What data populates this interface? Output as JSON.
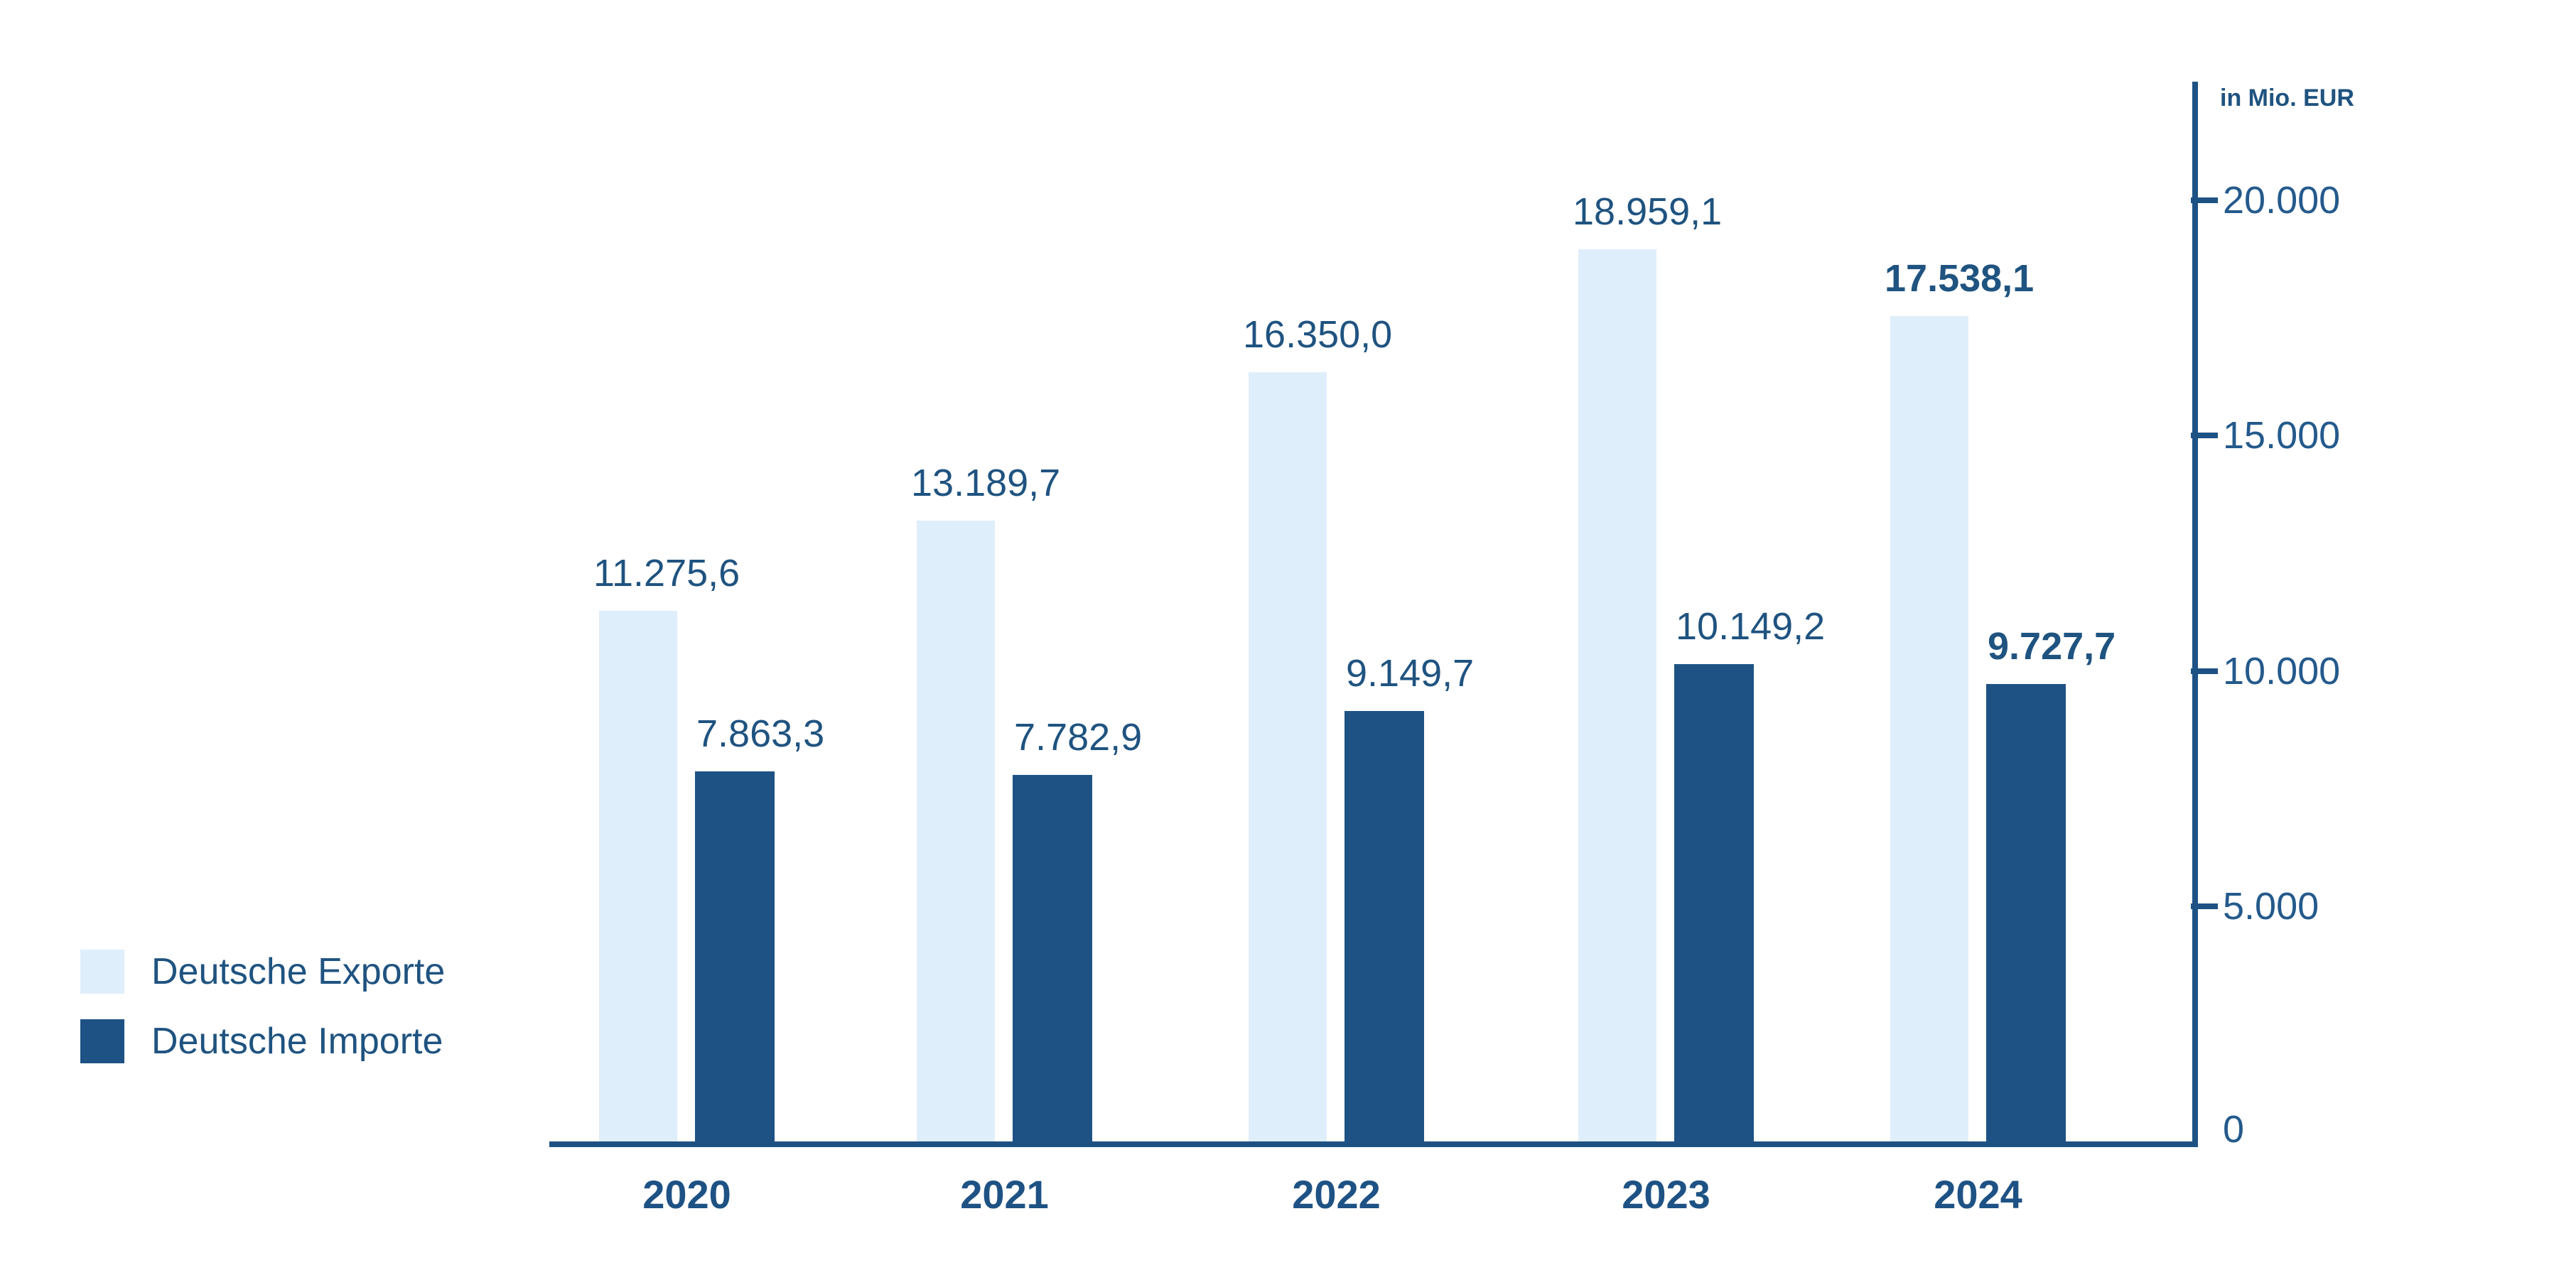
{
  "chart_data": {
    "type": "bar",
    "title": "",
    "unit_label": "in Mio. EUR",
    "categories": [
      "2020",
      "2021",
      "2022",
      "2023",
      "2024"
    ],
    "series": [
      {
        "name": "Deutsche Exporte",
        "color": "#DFEEFB",
        "values": [
          11275.6,
          13189.7,
          16350.0,
          18959.1,
          17538.1
        ],
        "labels": [
          "11.275,6",
          "13.189,7",
          "16.350,0",
          "18.959,1",
          "17.538,1"
        ]
      },
      {
        "name": "Deutsche Importe",
        "color": "#1E5284",
        "values": [
          7863.3,
          7782.9,
          9149.7,
          10149.2,
          9727.7
        ],
        "labels": [
          "7.863,3",
          "7.782,9",
          "9.149,7",
          "10.149,2",
          "9.727,7"
        ]
      }
    ],
    "emphasis_category": "2024",
    "y_axis": {
      "position": "right",
      "min": 0,
      "max": 20000,
      "ticks": [
        {
          "value": 0,
          "label": "0"
        },
        {
          "value": 5000,
          "label": "5.000"
        },
        {
          "value": 10000,
          "label": "10.000"
        },
        {
          "value": 15000,
          "label": "15.000"
        },
        {
          "value": 20000,
          "label": "20.000"
        }
      ]
    },
    "legend_position": "bottom-left",
    "grid": false,
    "colors": {
      "export_bar": "#DFEEFB",
      "import_bar": "#1E5284",
      "axis": "#1E5284",
      "text": "#1F5380",
      "tick_text": "#245A8C"
    }
  }
}
